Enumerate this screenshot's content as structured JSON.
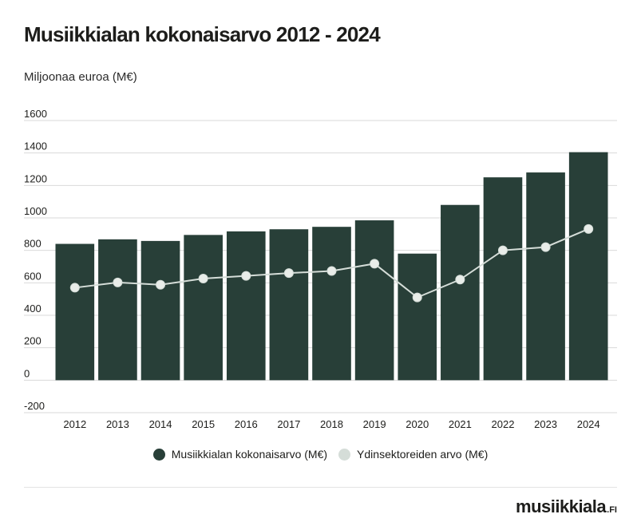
{
  "header": {
    "title": "Musiikkialan kokonaisarvo 2012 - 2024",
    "unit": "Miljoonaa euroa (M€)"
  },
  "colors": {
    "bar": "#283f38",
    "line": "#d5ddd8",
    "point_fill": "#e9ede9",
    "grid": "#d9d9d9",
    "text": "#1d1d1b"
  },
  "chart_data": {
    "type": "bar",
    "categories": [
      "2012",
      "2013",
      "2014",
      "2015",
      "2016",
      "2017",
      "2018",
      "2019",
      "2020",
      "2021",
      "2022",
      "2023",
      "2024"
    ],
    "series": [
      {
        "name": "Musiikkialan kokonaisarvo (M€)",
        "type": "bar",
        "values": [
          840,
          868,
          858,
          895,
          917,
          930,
          945,
          985,
          780,
          1080,
          1250,
          1280,
          1405
        ]
      },
      {
        "name": "Ydinsektoreiden arvo (M€)",
        "type": "line",
        "values": [
          570,
          602,
          588,
          626,
          643,
          660,
          673,
          718,
          510,
          620,
          800,
          820,
          932
        ]
      }
    ],
    "ylim": [
      -200,
      1600
    ],
    "yticks": [
      "1600",
      "1400",
      "1200",
      "1000",
      "800",
      "600",
      "400",
      "200",
      "0",
      "-200"
    ],
    "grid": true,
    "legend": "bottom"
  },
  "legend": {
    "items": [
      {
        "label": "Musiikkialan kokonaisarvo (M€)",
        "color": "#283f38"
      },
      {
        "label": "Ydinsektoreiden arvo (M€)",
        "color": "#d5ddd8"
      }
    ]
  },
  "brand": {
    "name": "musiikkiala",
    "suffix": ".FI"
  }
}
